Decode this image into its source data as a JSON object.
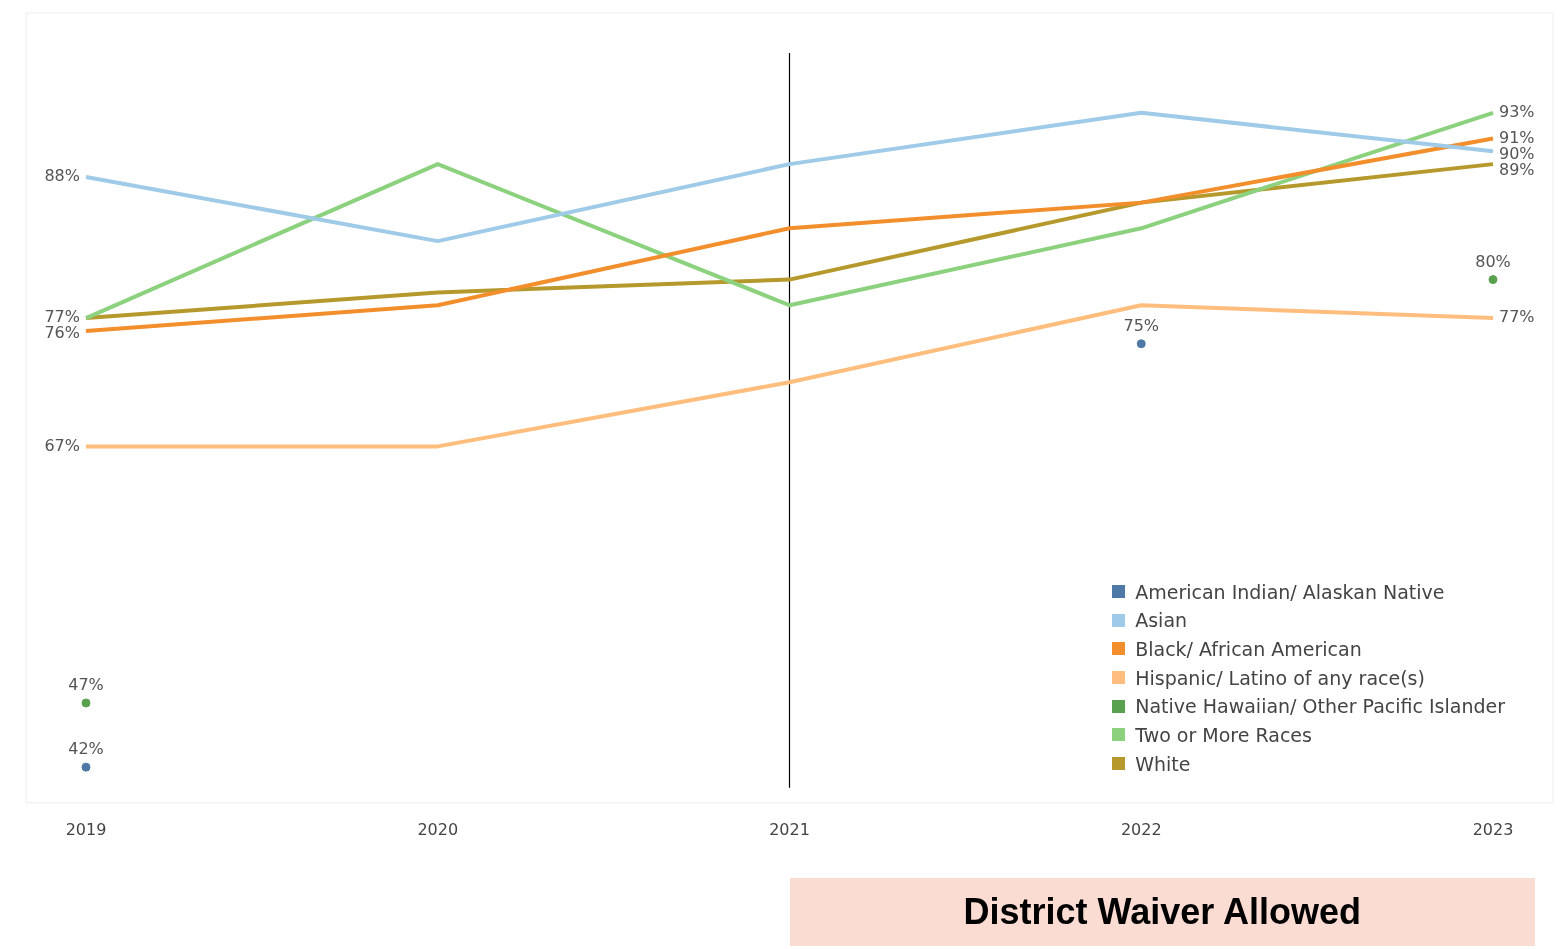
{
  "chart_data": {
    "type": "line",
    "categories": [
      "2019",
      "2020",
      "2021",
      "2022",
      "2023"
    ],
    "tick_labels": "x",
    "grid": false,
    "legend": "bottom right",
    "marker": "none",
    "series": [
      {
        "name": "American Indian/ Alaskan Native",
        "type": "scatter",
        "marker": "circle",
        "color": "#4e79a7",
        "values": [
          42,
          null,
          null,
          75,
          null
        ],
        "value_labels": [
          "42%",
          null,
          null,
          "75%",
          null
        ]
      },
      {
        "name": "Asian",
        "color": "#a0cbe8",
        "values": [
          88,
          83,
          89,
          93,
          90
        ],
        "value_labels": [
          "88%",
          null,
          null,
          null,
          "90%"
        ]
      },
      {
        "name": "Black/ African American",
        "color": "#f28e2b",
        "values": [
          76,
          78,
          84,
          86,
          91
        ],
        "value_labels": [
          "76%",
          null,
          null,
          null,
          "91%"
        ]
      },
      {
        "name": "Hispanic/ Latino of any race(s)",
        "color": "#ffbe7d",
        "values": [
          67,
          67,
          72,
          78,
          77
        ],
        "value_labels": [
          "67%",
          null,
          null,
          null,
          "77%"
        ]
      },
      {
        "name": "Native Hawaiian/ Other Pacific Islander",
        "type": "scatter",
        "marker": "circle",
        "color": "#59a14f",
        "values": [
          47,
          null,
          null,
          null,
          80
        ],
        "value_labels": [
          "47%",
          null,
          null,
          null,
          "80%"
        ]
      },
      {
        "name": "Two or More Races",
        "color": "#8cd17d",
        "values": [
          77,
          89,
          78,
          84,
          93
        ],
        "value_labels": [
          null,
          null,
          null,
          null,
          "93%"
        ]
      },
      {
        "name": "White",
        "color": "#b6992d",
        "values": [
          77,
          79,
          80,
          86,
          89
        ],
        "value_labels": [
          "77%",
          null,
          null,
          null,
          "89%"
        ]
      }
    ],
    "ref_lines": [
      {
        "axis": "x",
        "value": "2021",
        "color": "#000000"
      }
    ],
    "annotations": [
      "District Waiver Allowed"
    ]
  }
}
